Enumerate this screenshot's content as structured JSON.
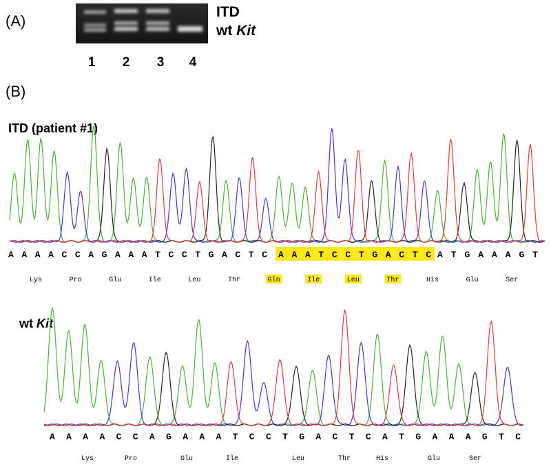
{
  "panel_a": {
    "label": "(A)",
    "band_labels": {
      "itd": "ITD",
      "wt_prefix": "wt",
      "wt_gene": "Kit"
    },
    "lanes": [
      "1",
      "2",
      "3",
      "4"
    ]
  },
  "panel_b": {
    "label": "(B)",
    "itd": {
      "title": "ITD (patient #1)",
      "sequence": {
        "before": "AAAACCAGAAATCCTGACTC",
        "duplicated": "AAATCCTGACTC",
        "after": "ATGAAAGT"
      },
      "amino_acids": {
        "before": [
          "Lys",
          "Pro",
          "Glu",
          "Ile",
          "Leu",
          "Thr"
        ],
        "duplicated": [
          "Gln",
          "Ile",
          "Leu",
          "Thr"
        ],
        "after": [
          "His",
          "Glu",
          "Ser"
        ]
      }
    },
    "wt": {
      "title_prefix": "wt",
      "title_gene": "Kit",
      "sequence": "AAAACCAGAAATCCTGACTCATGAAAGTC",
      "amino_acids": [
        "Lys",
        "Pro",
        "Glu",
        "Ile",
        "Leu",
        "Thr",
        "His",
        "Glu",
        "Ser"
      ]
    }
  }
}
